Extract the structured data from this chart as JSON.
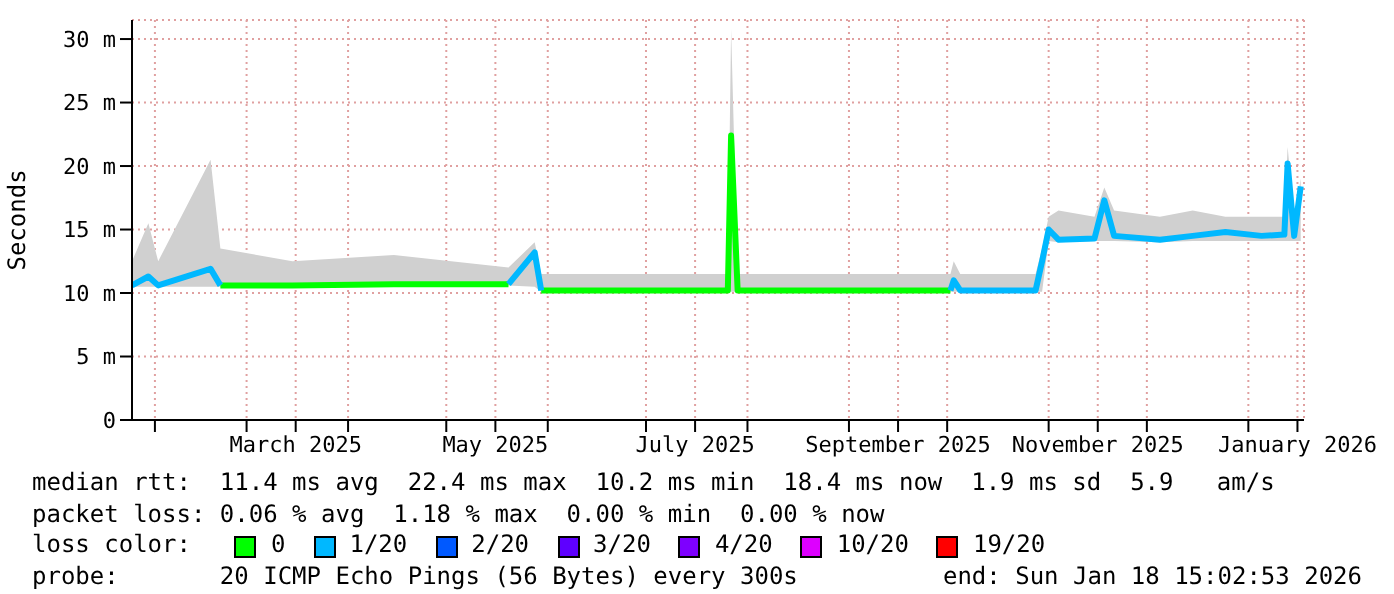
{
  "chart_data": {
    "type": "line",
    "ylabel": "Seconds",
    "legend_title": "loss color:",
    "legend": "bottom",
    "grid": true,
    "marker": "none",
    "line_style": "solid",
    "x": [
      "2025-01-25",
      "2025-01-30",
      "2025-02-02",
      "2025-02-18",
      "2025-02-21",
      "2025-03-15",
      "2025-04-15",
      "2025-05-20",
      "2025-05-28",
      "2025-05-30",
      "2025-06-30",
      "2025-07-26",
      "2025-07-27",
      "2025-07-29",
      "2025-08-30",
      "2025-10-02",
      "2025-10-03",
      "2025-10-05",
      "2025-10-28",
      "2025-10-30",
      "2025-11-01",
      "2025-11-04",
      "2025-11-15",
      "2025-11-18",
      "2025-11-21",
      "2025-12-05",
      "2025-12-15",
      "2025-12-25",
      "2026-01-05",
      "2026-01-12",
      "2026-01-13",
      "2026-01-15",
      "2026-01-17"
    ],
    "xlim": [
      "2025-01-25",
      "2026-01-18"
    ],
    "xticks": [
      {
        "value": "2025-02-01",
        "label": null
      },
      {
        "value": "2025-03-01",
        "label": null
      },
      {
        "value": "2025-03-16",
        "label": "March 2025"
      },
      {
        "value": "2025-04-01",
        "label": null
      },
      {
        "value": "2025-05-01",
        "label": null
      },
      {
        "value": "2025-05-16",
        "label": "May 2025"
      },
      {
        "value": "2025-06-01",
        "label": null
      },
      {
        "value": "2025-07-01",
        "label": null
      },
      {
        "value": "2025-07-16",
        "label": "July 2025"
      },
      {
        "value": "2025-08-01",
        "label": null
      },
      {
        "value": "2025-09-01",
        "label": null
      },
      {
        "value": "2025-09-16",
        "label": "September 2025"
      },
      {
        "value": "2025-10-01",
        "label": null
      },
      {
        "value": "2025-11-01",
        "label": null
      },
      {
        "value": "2025-11-16",
        "label": "November 2025"
      },
      {
        "value": "2025-12-01",
        "label": null
      },
      {
        "value": "2026-01-01",
        "label": null
      },
      {
        "value": "2026-01-16",
        "label": "January 2026"
      }
    ],
    "ylim": [
      0,
      31.5
    ],
    "yticks": [
      0,
      {
        "value": 5,
        "label": "5 m"
      },
      {
        "value": 10,
        "label": "10 m"
      },
      {
        "value": 15,
        "label": "15 m"
      },
      {
        "value": 20,
        "label": "20 m"
      },
      {
        "value": 25,
        "label": "25 m"
      },
      {
        "value": 30,
        "label": "30 m"
      }
    ],
    "series": [
      {
        "name": "0",
        "color": "#00ff00",
        "values": [
          null,
          null,
          null,
          null,
          10.6,
          10.6,
          10.7,
          10.7,
          null,
          10.2,
          10.2,
          10.2,
          22.4,
          10.2,
          10.2,
          10.2,
          null,
          null,
          null,
          null,
          null,
          null,
          null,
          null,
          null,
          null,
          null,
          null,
          null,
          null,
          null,
          null,
          null
        ],
        "lower": [
          10.5,
          10.5,
          10.5,
          10.5,
          10.5,
          10.5,
          10.6,
          10.6,
          10.5,
          10.1,
          10.1,
          10.1,
          10.1,
          10.1,
          10.1,
          10.1,
          10.1,
          10.1,
          10.1,
          10.1,
          14.1,
          14.0,
          14.1,
          14.1,
          14.1,
          14.0,
          14.1,
          14.1,
          14.1,
          14.1,
          14.1,
          14.1,
          14.1
        ],
        "upper": [
          12.5,
          15.5,
          12.5,
          20.5,
          13.5,
          12.5,
          13.0,
          12.0,
          14.0,
          11.5,
          11.5,
          11.5,
          30.8,
          11.5,
          11.5,
          11.5,
          12.5,
          11.5,
          11.5,
          13.5,
          16.0,
          16.5,
          16.0,
          18.3,
          16.5,
          16.0,
          16.5,
          16.0,
          16.0,
          16.0,
          21.5,
          16.0,
          19.0
        ]
      },
      {
        "name": "1/20",
        "color": "#00b8ff",
        "values": [
          10.6,
          11.3,
          10.6,
          11.9,
          10.6,
          null,
          null,
          10.7,
          13.2,
          10.2,
          null,
          null,
          null,
          null,
          null,
          10.2,
          11.0,
          10.2,
          10.2,
          12.5,
          15.0,
          14.2,
          14.3,
          17.3,
          14.5,
          14.2,
          14.5,
          14.8,
          14.5,
          14.6,
          20.2,
          14.5,
          18.4
        ]
      },
      {
        "name": "2/20",
        "color": "#0059ff",
        "values": [
          null,
          null,
          null,
          null,
          null,
          null,
          null,
          null,
          null,
          null,
          null,
          null,
          null,
          null,
          null,
          null,
          null,
          null,
          null,
          null,
          null,
          null,
          null,
          null,
          null,
          null,
          null,
          null,
          null,
          null,
          null,
          null,
          null
        ]
      },
      {
        "name": "3/20",
        "color": "#5e00ff",
        "values": [
          null,
          null,
          null,
          null,
          null,
          null,
          null,
          null,
          null,
          null,
          null,
          null,
          null,
          null,
          null,
          null,
          null,
          null,
          null,
          null,
          null,
          null,
          null,
          null,
          null,
          null,
          null,
          null,
          null,
          null,
          null,
          null,
          null
        ]
      },
      {
        "name": "4/20",
        "color": "#7e00ff",
        "values": [
          null,
          null,
          null,
          null,
          null,
          null,
          null,
          null,
          null,
          null,
          null,
          null,
          null,
          null,
          null,
          null,
          null,
          null,
          null,
          null,
          null,
          null,
          null,
          null,
          null,
          null,
          null,
          null,
          null,
          null,
          null,
          null,
          null
        ]
      },
      {
        "name": "10/20",
        "color": "#dd00ff",
        "values": [
          null,
          null,
          null,
          null,
          null,
          null,
          null,
          null,
          null,
          null,
          null,
          null,
          null,
          null,
          null,
          null,
          null,
          null,
          null,
          null,
          null,
          null,
          null,
          null,
          null,
          null,
          null,
          null,
          null,
          null,
          null,
          null,
          null
        ]
      },
      {
        "name": "19/20",
        "color": "#ff0000",
        "values": [
          null,
          null,
          null,
          null,
          null,
          null,
          null,
          null,
          null,
          null,
          null,
          null,
          null,
          null,
          null,
          null,
          null,
          null,
          null,
          null,
          null,
          null,
          null,
          null,
          null,
          null,
          null,
          null,
          null,
          null,
          null,
          null,
          null
        ]
      }
    ],
    "annotations": [
      "median rtt:  11.4 ms avg  22.4 ms max  10.2 ms min  18.4 ms now  1.9 ms sd  5.9   am/s",
      "packet loss: 0.06 % avg  1.18 % max  0.00 % min  0.00 % now",
      "probe:       20 ICMP Echo Pings (56 Bytes) every 300s",
      "end: Sun Jan 18 15:02:53 2026"
    ]
  }
}
